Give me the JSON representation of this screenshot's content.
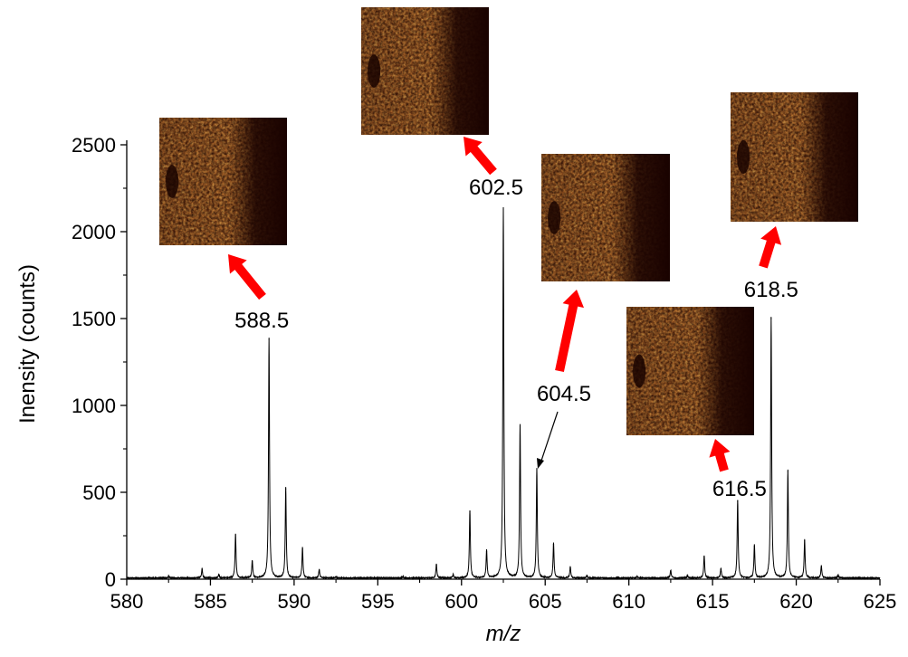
{
  "chart_data": {
    "type": "line",
    "xlabel": "m/z",
    "ylabel": "Inensity (counts)",
    "xlim": [
      580,
      625
    ],
    "ylim": [
      0,
      2500
    ],
    "x_ticks": [
      "580",
      "585",
      "590",
      "595",
      "600",
      "605",
      "610",
      "615",
      "620",
      "625"
    ],
    "y_ticks": [
      "0",
      "500",
      "1000",
      "1500",
      "2000",
      "2500"
    ],
    "grid": false,
    "line_color": "#000000",
    "peaks": [
      {
        "x": 582.5,
        "y": 10
      },
      {
        "x": 584.5,
        "y": 55
      },
      {
        "x": 585.5,
        "y": 20
      },
      {
        "x": 586.5,
        "y": 255
      },
      {
        "x": 587.5,
        "y": 100
      },
      {
        "x": 588.5,
        "y": 1380
      },
      {
        "x": 589.5,
        "y": 520
      },
      {
        "x": 590.5,
        "y": 175
      },
      {
        "x": 591.5,
        "y": 50
      },
      {
        "x": 592.5,
        "y": 10
      },
      {
        "x": 596.5,
        "y": 10
      },
      {
        "x": 598.5,
        "y": 80
      },
      {
        "x": 599.5,
        "y": 20
      },
      {
        "x": 600.5,
        "y": 390
      },
      {
        "x": 601.5,
        "y": 160
      },
      {
        "x": 602.5,
        "y": 2130
      },
      {
        "x": 603.5,
        "y": 880
      },
      {
        "x": 604.5,
        "y": 630
      },
      {
        "x": 605.5,
        "y": 200
      },
      {
        "x": 606.5,
        "y": 65
      },
      {
        "x": 607.5,
        "y": 15
      },
      {
        "x": 610.5,
        "y": 10
      },
      {
        "x": 612.5,
        "y": 45
      },
      {
        "x": 613.5,
        "y": 15
      },
      {
        "x": 614.5,
        "y": 130
      },
      {
        "x": 615.5,
        "y": 55
      },
      {
        "x": 616.5,
        "y": 450
      },
      {
        "x": 617.5,
        "y": 190
      },
      {
        "x": 618.5,
        "y": 1500
      },
      {
        "x": 619.5,
        "y": 620
      },
      {
        "x": 620.5,
        "y": 220
      },
      {
        "x": 621.5,
        "y": 70
      },
      {
        "x": 622.5,
        "y": 15
      }
    ],
    "annotations": [
      {
        "label": "588.5",
        "x": 588.5
      },
      {
        "label": "602.5",
        "x": 602.5
      },
      {
        "label": "604.5",
        "x": 604.5
      },
      {
        "label": "616.5",
        "x": 616.5
      },
      {
        "label": "618.5",
        "x": 618.5
      }
    ],
    "arrow_color": "#ff0000",
    "image_colors": [
      "#1a0300",
      "#7a2a05",
      "#c2550f",
      "#e98a22",
      "#ffb84a"
    ]
  }
}
